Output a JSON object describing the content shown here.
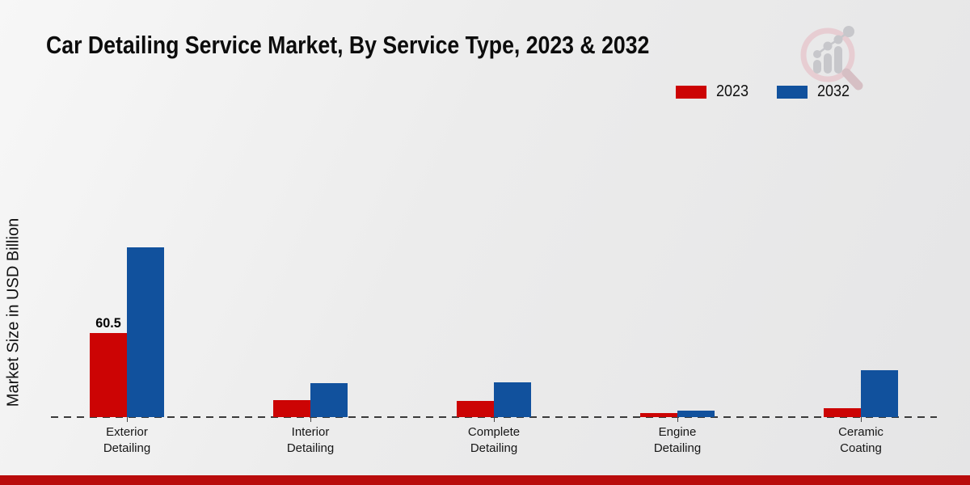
{
  "title": "Car Detailing Service Market, By Service Type, 2023 & 2032",
  "ylabel": "Market Size in USD Billion",
  "legend": [
    {
      "label": "2023",
      "color": "#cc0404"
    },
    {
      "label": "2032",
      "color": "#11519d"
    }
  ],
  "colors": {
    "bar_2023": "#cc0404",
    "bar_2032": "#11519d",
    "footer_bar": "#b90c0c",
    "axis_line": "#3a3a3a"
  },
  "watermark": {
    "icon": "market-research-magnifier-logo"
  },
  "chart_data": {
    "type": "bar",
    "title": "Car Detailing Service Market, By Service Type, 2023 & 2032",
    "xlabel": "",
    "ylabel": "Market Size in USD Billion",
    "categories": [
      "Exterior Detailing",
      "Interior Detailing",
      "Complete Detailing",
      "Engine Detailing",
      "Ceramic Coating"
    ],
    "series": [
      {
        "name": "2023",
        "color": "#cc0404",
        "values": [
          60.5,
          12.2,
          11.8,
          2.8,
          6.4
        ]
      },
      {
        "name": "2032",
        "color": "#11519d",
        "values": [
          122.2,
          24.3,
          25.3,
          4.5,
          34.0
        ]
      }
    ],
    "data_labels": [
      {
        "series": "2023",
        "category_index": 0,
        "text": "60.5"
      }
    ],
    "ylim": [
      0,
      130
    ],
    "grid": false,
    "baseline": "dashed",
    "legend_position": "top-right",
    "axis_ticks": "category ticks below dashed baseline, no y-axis scale shown"
  }
}
